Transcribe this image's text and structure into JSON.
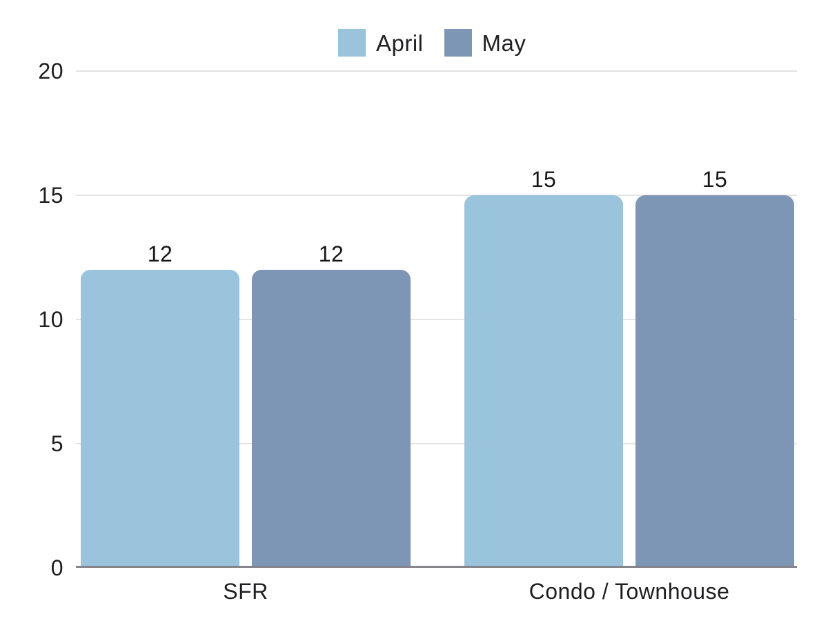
{
  "chart_data": {
    "type": "bar",
    "categories": [
      "SFR",
      "Condo / Townhouse"
    ],
    "series": [
      {
        "name": "April",
        "color": "#9AC3DC",
        "values": [
          12,
          15
        ]
      },
      {
        "name": "May",
        "color": "#7E96B5",
        "values": [
          12,
          15
        ]
      }
    ],
    "title": "",
    "xlabel": "",
    "ylabel": "",
    "ylim": [
      0,
      20
    ],
    "yticks": [
      0,
      5,
      10,
      15,
      20
    ],
    "grid": true,
    "legend_position": "top-center",
    "data_labels_shown": true
  },
  "colors": {
    "april_bar": "#9AC3DC",
    "may_bar": "#7E96B5",
    "gridline": "#e4e4e7",
    "baseline": "#85858b",
    "text": "#1e1e21",
    "background": "#ffffff"
  }
}
